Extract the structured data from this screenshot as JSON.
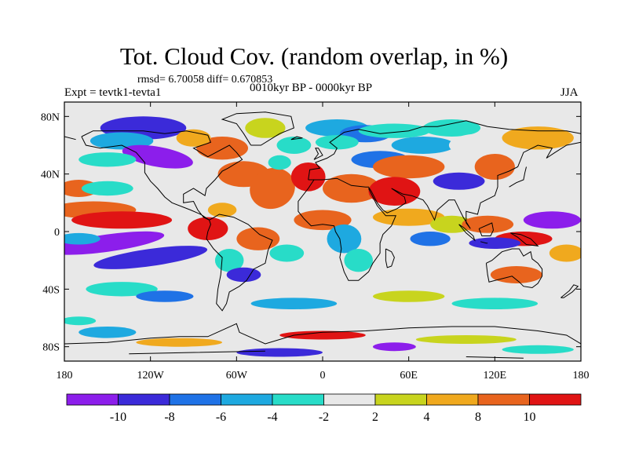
{
  "header": {
    "title": "Tot. Cloud Cov. (random overlap, in %)",
    "stats": "rmsd= 6.70058 diff= 0.670853",
    "experiment": "Expt = tevtk1-tevta1",
    "period": "0010kyr BP - 0000kyr BP",
    "season": "JJA"
  },
  "map": {
    "projection": "cylindrical-equidistant",
    "lon_range": [
      -180,
      180
    ],
    "lat_range": [
      -90,
      90
    ],
    "lon_ticks": [
      {
        "value": -180,
        "label": "180"
      },
      {
        "value": -120,
        "label": "120W"
      },
      {
        "value": -60,
        "label": "60W"
      },
      {
        "value": 0,
        "label": "0"
      },
      {
        "value": 60,
        "label": "60E"
      },
      {
        "value": 120,
        "label": "120E"
      },
      {
        "value": 180,
        "label": "180"
      }
    ],
    "lat_ticks": [
      {
        "value": 80,
        "label": "80N"
      },
      {
        "value": 40,
        "label": "40N"
      },
      {
        "value": 0,
        "label": "0"
      },
      {
        "value": -40,
        "label": "40S"
      },
      {
        "value": -80,
        "label": "80S"
      }
    ],
    "background_color": "#e8e8e8"
  },
  "colorbar": {
    "levels": [
      -10,
      -8,
      -6,
      -4,
      -2,
      2,
      4,
      8,
      10
    ],
    "labels": [
      "-10",
      "-8",
      "-6",
      "-4",
      "-2",
      "2",
      "4",
      "8",
      "10"
    ],
    "colors": [
      "#8c1eeb",
      "#3b2ad9",
      "#1f72e6",
      "#1ea9e0",
      "#28dcc8",
      "#e8e8e8",
      "#c8d41e",
      "#f0a91e",
      "#e8641e",
      "#e01414"
    ]
  }
}
